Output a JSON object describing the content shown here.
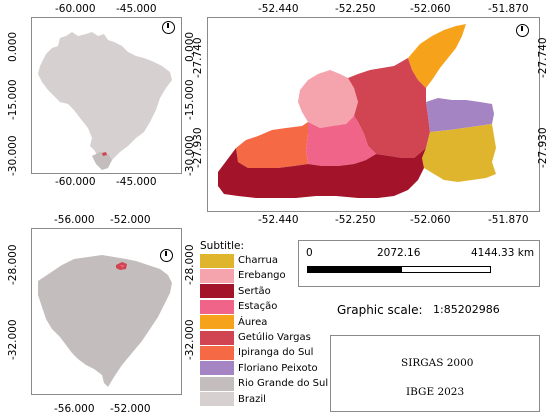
{
  "map_brazil": {
    "x_ticks": [
      "-60.000",
      "-45.000"
    ],
    "y_ticks": [
      "0.000",
      "-15.000",
      "-30.000"
    ]
  },
  "map_municipalities": {
    "x_ticks": [
      "-52.440",
      "-52.250",
      "-52.060",
      "-51.870"
    ],
    "y_ticks": [
      "-27.740",
      "-27.930"
    ]
  },
  "map_rs": {
    "x_ticks": [
      "-56.000",
      "-52.000"
    ],
    "y_ticks": [
      "-28.000",
      "-32.000"
    ]
  },
  "legend": {
    "title": "Subtitle:",
    "items": [
      {
        "label": "Charrua",
        "color": "#e0b52e"
      },
      {
        "label": "Erebango",
        "color": "#f5a3ad"
      },
      {
        "label": "Sertão",
        "color": "#a3142b"
      },
      {
        "label": "Estação",
        "color": "#f0648a"
      },
      {
        "label": "Áurea",
        "color": "#f7a21b"
      },
      {
        "label": "Getúlio Vargas",
        "color": "#d14452"
      },
      {
        "label": "Ipiranga do Sul",
        "color": "#f56a45"
      },
      {
        "label": "Floriano Peixoto",
        "color": "#a584c4"
      },
      {
        "label": "Rio Grande do Sul",
        "color": "#c4bdbd"
      },
      {
        "label": "Brazil",
        "color": "#d6d0d0"
      }
    ]
  },
  "scalebar": {
    "labels": [
      "0",
      "2072.16",
      "4144.33 km"
    ]
  },
  "graphic_scale": {
    "label": "Graphic scale:",
    "value": "1:85202986"
  },
  "info": {
    "datum": "SIRGAS 2000",
    "source": "IBGE 2023"
  }
}
